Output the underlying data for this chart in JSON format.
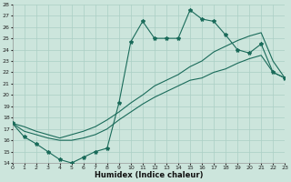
{
  "xlabel": "Humidex (Indice chaleur)",
  "bg_color": "#cce5dc",
  "line_color": "#1a6b5a",
  "grid_color": "#aacfc5",
  "ylim": [
    14,
    28
  ],
  "xlim": [
    0,
    23
  ],
  "yticks": [
    14,
    15,
    16,
    17,
    18,
    19,
    20,
    21,
    22,
    23,
    24,
    25,
    26,
    27,
    28
  ],
  "xticks": [
    0,
    1,
    2,
    3,
    4,
    5,
    6,
    7,
    8,
    9,
    10,
    11,
    12,
    13,
    14,
    15,
    16,
    17,
    18,
    19,
    20,
    21,
    22,
    23
  ],
  "series1_x": [
    0,
    1,
    2,
    3,
    4,
    5,
    6,
    7,
    8,
    9,
    10,
    11,
    12,
    13,
    14,
    15,
    16,
    17,
    18,
    19,
    20,
    21,
    22,
    23
  ],
  "series1_y": [
    17.5,
    16.3,
    15.7,
    15.0,
    14.3,
    14.0,
    14.5,
    15.0,
    15.3,
    19.3,
    24.7,
    26.5,
    25.0,
    25.0,
    25.0,
    27.5,
    26.7,
    26.5,
    25.3,
    24.0,
    23.7,
    24.5,
    22.0,
    21.5
  ],
  "series2_x": [
    0,
    23
  ],
  "series2_y": [
    17.5,
    21.5
  ],
  "series3_x": [
    0,
    23
  ],
  "series3_y": [
    17.5,
    21.5
  ],
  "line2_points_x": [
    0,
    1,
    2,
    3,
    4,
    5,
    6,
    7,
    8,
    9,
    10,
    11,
    12,
    13,
    14,
    15,
    16,
    17,
    18,
    19,
    20,
    21,
    22,
    23
  ],
  "line2_points_y": [
    17.5,
    16.8,
    16.5,
    16.2,
    16.0,
    16.0,
    16.2,
    16.5,
    17.0,
    17.8,
    18.5,
    19.2,
    19.8,
    20.3,
    20.8,
    21.3,
    21.5,
    22.0,
    22.3,
    22.8,
    23.2,
    23.5,
    22.0,
    21.5
  ],
  "line3_points_x": [
    0,
    1,
    2,
    3,
    4,
    5,
    6,
    7,
    8,
    9,
    10,
    11,
    12,
    13,
    14,
    15,
    16,
    17,
    18,
    19,
    20,
    21,
    22,
    23
  ],
  "line3_points_y": [
    17.5,
    17.2,
    16.8,
    16.5,
    16.2,
    16.5,
    16.8,
    17.2,
    17.8,
    18.5,
    19.3,
    20.0,
    20.8,
    21.3,
    21.8,
    22.5,
    23.0,
    23.8,
    24.3,
    24.8,
    25.2,
    25.5,
    23.0,
    21.5
  ]
}
